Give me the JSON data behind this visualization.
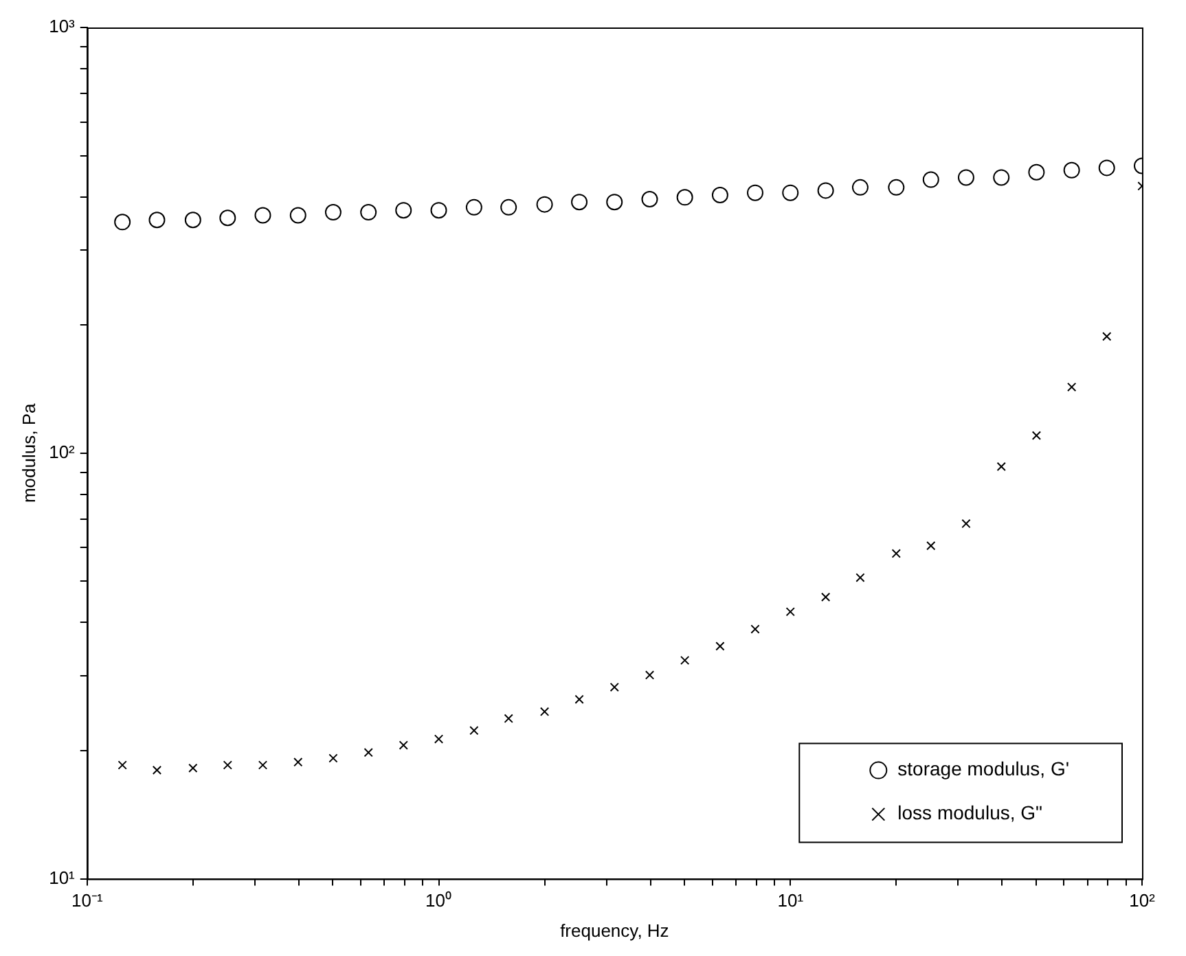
{
  "chart_data": {
    "type": "scatter",
    "xlabel": "frequency, Hz",
    "ylabel": "modulus, Pa",
    "log": "xy",
    "grid": false,
    "legend": "bottom right",
    "x": [
      0.126,
      0.158,
      0.2,
      0.251,
      0.316,
      0.398,
      0.501,
      0.631,
      0.794,
      1,
      1.26,
      1.58,
      2,
      2.51,
      3.16,
      3.98,
      5.01,
      6.31,
      7.94,
      10,
      12.6,
      15.8,
      20,
      25.1,
      31.6,
      39.8,
      50.1,
      63.1,
      79.4,
      100
    ],
    "series": [
      {
        "name": "storage modulus, G'",
        "color": "#000000",
        "marker": "circle",
        "values": [
          349,
          353,
          353,
          357,
          362,
          362,
          368,
          368,
          372,
          372,
          378,
          378,
          384,
          389,
          389,
          395,
          399,
          404,
          409,
          409,
          414,
          421,
          421,
          439,
          444,
          444,
          457,
          462,
          468,
          473
        ]
      },
      {
        "name": "loss modulus, G\"",
        "color": "#000000",
        "marker": "cross",
        "values": [
          18.5,
          18.0,
          18.2,
          18.5,
          18.5,
          18.8,
          19.2,
          19.8,
          20.6,
          21.3,
          22.3,
          23.8,
          24.7,
          26.4,
          28.2,
          30.1,
          32.6,
          35.2,
          38.6,
          42.4,
          45.9,
          51.0,
          58.1,
          60.6,
          68.3,
          93,
          110,
          143,
          188,
          424
        ]
      }
    ],
    "xlim": [
      0.1,
      100
    ],
    "xticks": [
      {
        "value": 0.1,
        "label": "10⁻¹"
      },
      {
        "value": 0.2,
        "label": null
      },
      {
        "value": 0.3,
        "label": null
      },
      {
        "value": 0.4,
        "label": null
      },
      {
        "value": 0.5,
        "label": null
      },
      {
        "value": 0.6,
        "label": null
      },
      {
        "value": 0.7,
        "label": null
      },
      {
        "value": 0.8,
        "label": null
      },
      {
        "value": 0.9,
        "label": null
      },
      {
        "value": 1,
        "label": "10⁰"
      },
      {
        "value": 2,
        "label": null
      },
      {
        "value": 3,
        "label": null
      },
      {
        "value": 4,
        "label": null
      },
      {
        "value": 5,
        "label": null
      },
      {
        "value": 6,
        "label": null
      },
      {
        "value": 7,
        "label": null
      },
      {
        "value": 8,
        "label": null
      },
      {
        "value": 9,
        "label": null
      },
      {
        "value": 10,
        "label": "10¹"
      },
      {
        "value": 20,
        "label": null
      },
      {
        "value": 30,
        "label": null
      },
      {
        "value": 40,
        "label": null
      },
      {
        "value": 50,
        "label": null
      },
      {
        "value": 60,
        "label": null
      },
      {
        "value": 70,
        "label": null
      },
      {
        "value": 80,
        "label": null
      },
      {
        "value": 90,
        "label": null
      },
      {
        "value": 100,
        "label": "10²"
      }
    ],
    "ylim": [
      10,
      1000
    ],
    "yticks": [
      {
        "value": 10,
        "label": "10¹"
      },
      {
        "value": 20,
        "label": null
      },
      {
        "value": 30,
        "label": null
      },
      {
        "value": 40,
        "label": null
      },
      {
        "value": 50,
        "label": null
      },
      {
        "value": 60,
        "label": null
      },
      {
        "value": 70,
        "label": null
      },
      {
        "value": 80,
        "label": null
      },
      {
        "value": 90,
        "label": null
      },
      {
        "value": 100,
        "label": "10²"
      },
      {
        "value": 200,
        "label": null
      },
      {
        "value": 300,
        "label": null
      },
      {
        "value": 400,
        "label": null
      },
      {
        "value": 500,
        "label": null
      },
      {
        "value": 600,
        "label": null
      },
      {
        "value": 700,
        "label": null
      },
      {
        "value": 800,
        "label": null
      },
      {
        "value": 900,
        "label": null
      },
      {
        "value": 1000,
        "label": "10³"
      }
    ]
  }
}
